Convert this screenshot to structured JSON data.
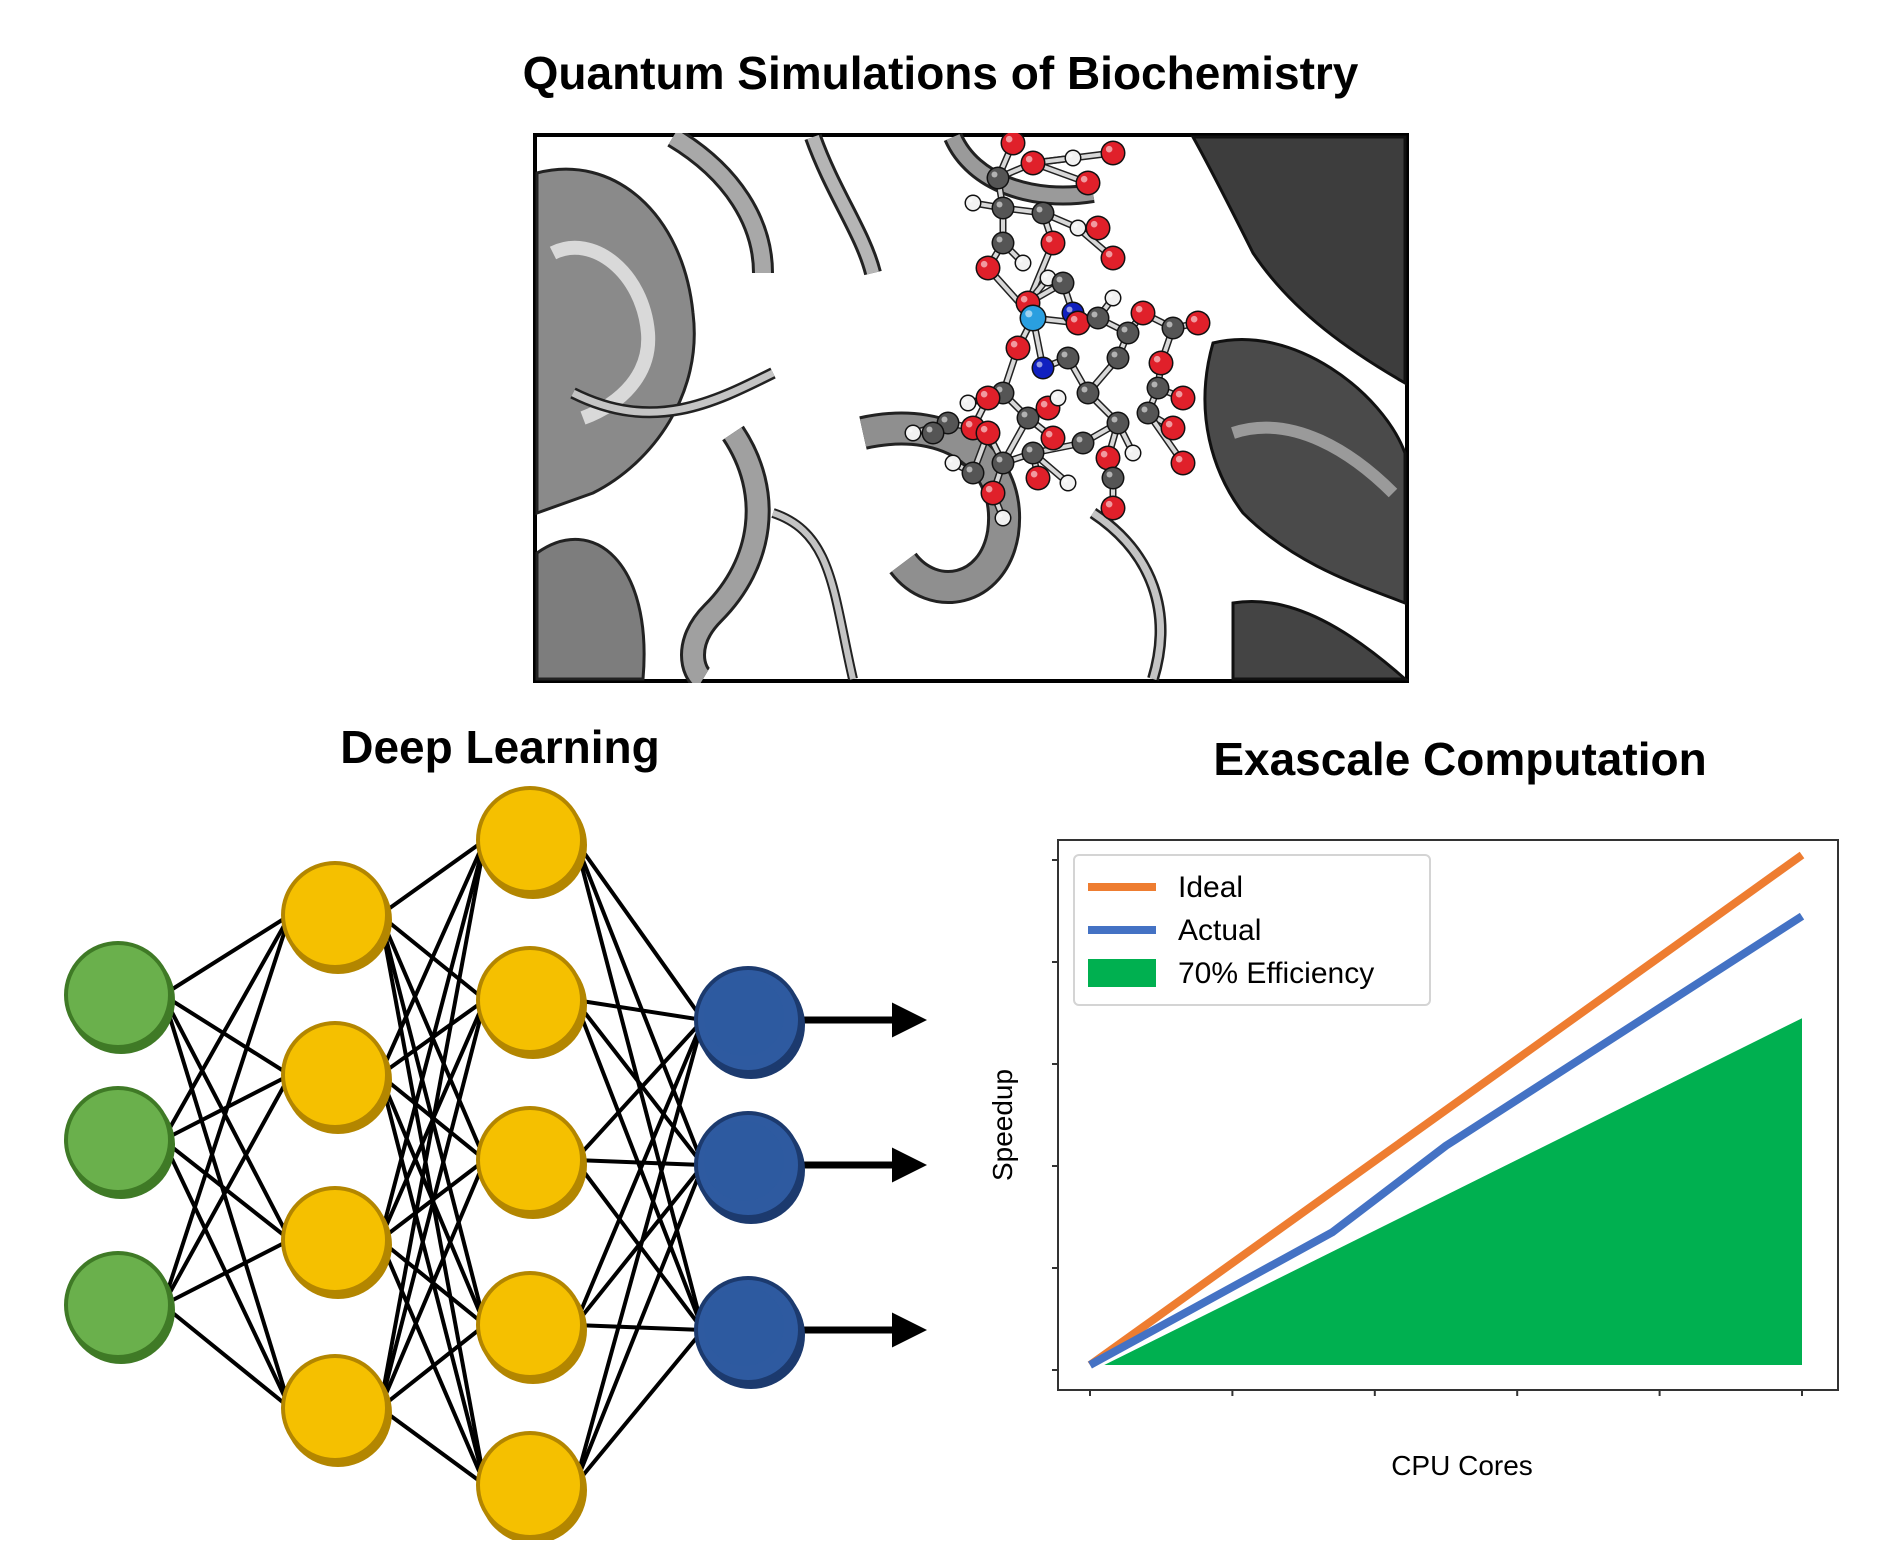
{
  "titles": {
    "quantum": "Quantum Simulations of Biochemistry",
    "deep_learning": "Deep Learning",
    "exascale": "Exascale Computation"
  },
  "molecule_panel": {
    "icon": "protein-ligand-render",
    "colors": {
      "ribbon": "#9a9a9a",
      "ribbon_dark": "#3a3a3a",
      "oxygen": "#e0202a",
      "carbon": "#555555",
      "hydrogen": "#f2f2f2",
      "nitrogen": "#1020c0",
      "phosphorus": "#2a9fe0"
    }
  },
  "network": {
    "layers": [
      3,
      4,
      5,
      3
    ],
    "colors": [
      "#6ab04c",
      "#f5c000",
      "#f5c000",
      "#2e5aa0"
    ],
    "outputs": 3
  },
  "chart_data": {
    "type": "line",
    "xlabel": "CPU Cores",
    "ylabel": "Speedup",
    "xlim": [
      0,
      10
    ],
    "ylim": [
      0,
      10
    ],
    "legend_position": "top-left",
    "grid": false,
    "series": [
      {
        "name": "Ideal",
        "kind": "line",
        "color": "#ee7d31",
        "x": [
          0,
          10
        ],
        "y": [
          0,
          10
        ]
      },
      {
        "name": "Actual",
        "kind": "line",
        "color": "#4472c4",
        "x": [
          0,
          3.4,
          5,
          10
        ],
        "y": [
          0,
          2.6,
          4.3,
          8.8
        ]
      },
      {
        "name": "70% Efficiency",
        "kind": "area",
        "color": "#00b050",
        "x": [
          0.2,
          10,
          10
        ],
        "y": [
          0,
          6.8,
          0
        ]
      }
    ]
  }
}
